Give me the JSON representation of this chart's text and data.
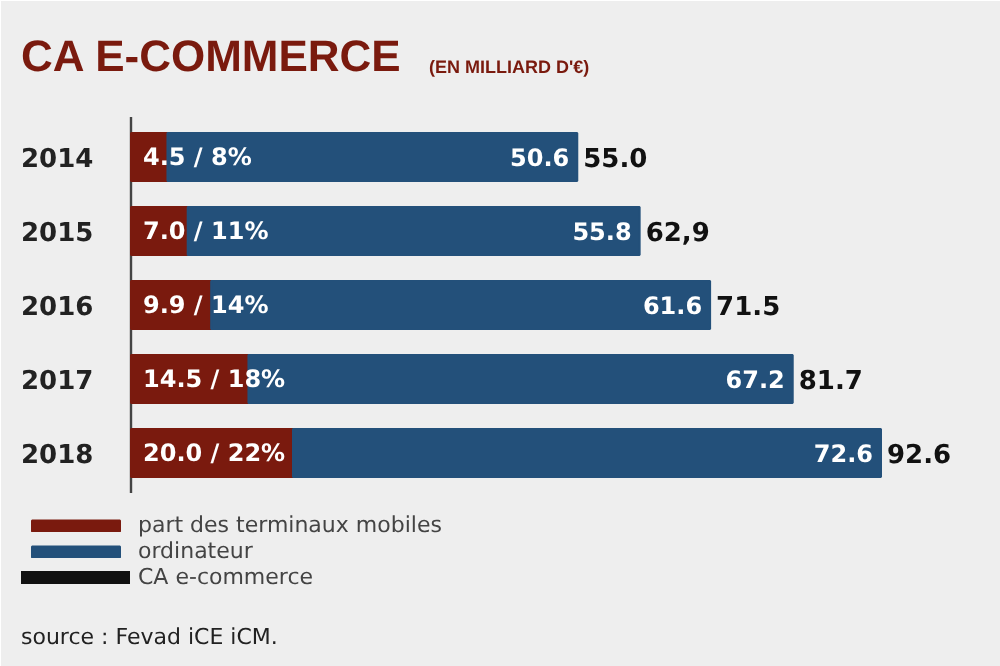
{
  "chart_data": {
    "type": "bar",
    "orientation": "horizontal",
    "stacked": true,
    "title": "CA E-COMMERCE",
    "subtitle": "(EN MILLIARD D'€)",
    "categories": [
      "2014",
      "2015",
      "2016",
      "2017",
      "2018"
    ],
    "series": [
      {
        "name": "part des terminaux mobiles",
        "color": "#7a1a0e",
        "values": [
          4.5,
          7.0,
          9.9,
          14.5,
          20.0
        ],
        "value_labels": [
          "4.5 / 8%",
          "7.0 / 11%",
          "9.9 / 14%",
          "14.5 / 18%",
          "20.0 / 22%"
        ]
      },
      {
        "name": "ordinateur",
        "color": "#23507a",
        "values": [
          50.6,
          55.8,
          61.6,
          67.2,
          72.6
        ],
        "value_labels": [
          "50.6",
          "55.8",
          "61.6",
          "67.2",
          "72.6"
        ]
      },
      {
        "name": "CA e-commerce",
        "color": "#111111",
        "values": [
          null,
          null,
          null,
          null,
          null
        ]
      }
    ],
    "totals": [
      "55.0",
      "62,9",
      "71.5",
      "81.7",
      "92.6"
    ],
    "legend": "bottom",
    "annotations": [
      "source : Fevad iCE iCM."
    ]
  }
}
